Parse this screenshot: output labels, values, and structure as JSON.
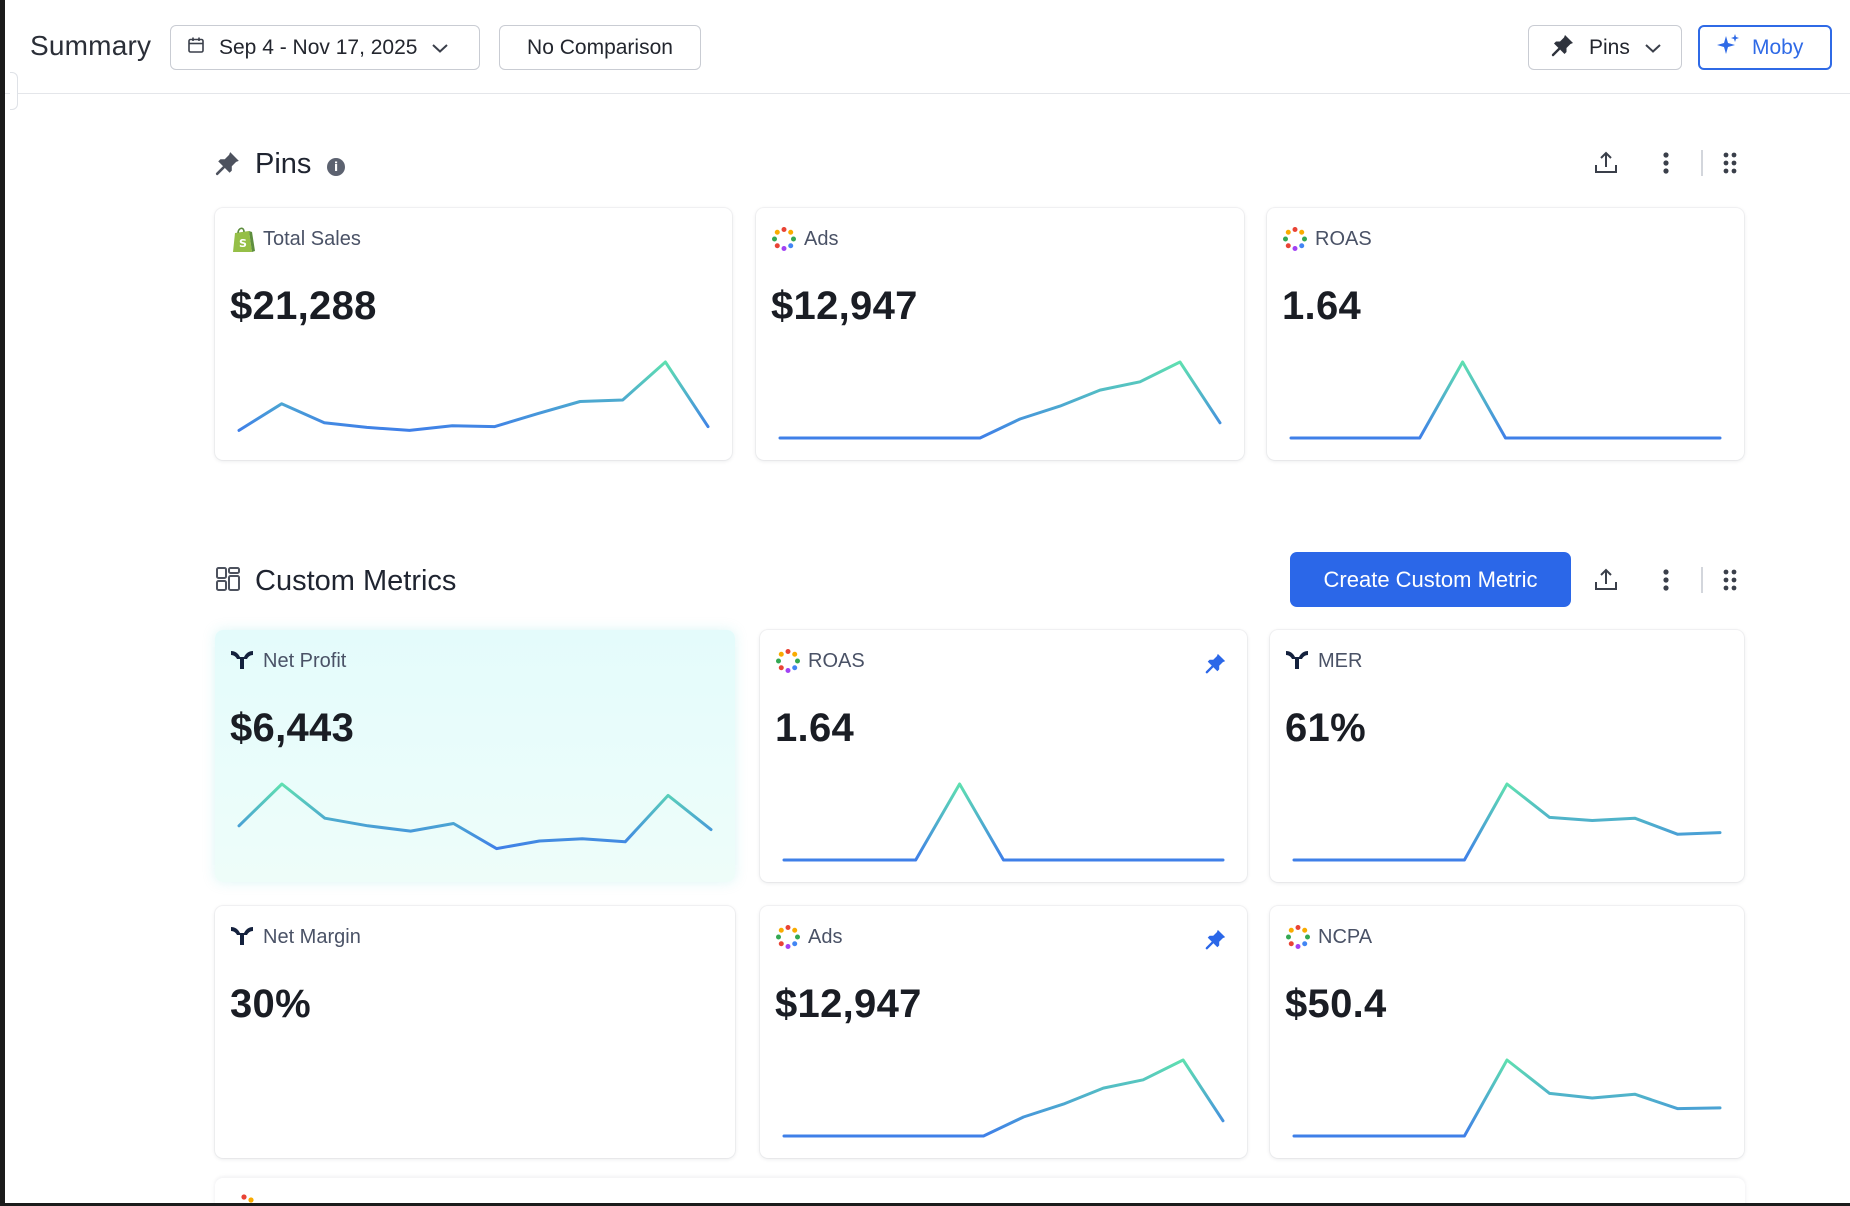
{
  "header": {
    "title": "Summary",
    "date_range": "Sep 4 - Nov 17, 2025",
    "comparison": "No Comparison",
    "pins_label": "Pins",
    "moby_label": "Moby"
  },
  "pins_section": {
    "title": "Pins",
    "info": "i",
    "cards": [
      {
        "label": "Total Sales",
        "value": "$21,288",
        "icon": "shopify-icon",
        "pinned": false,
        "trend": [
          0.1,
          0.45,
          0.2,
          0.14,
          0.1,
          0.16,
          0.15,
          0.32,
          0.48,
          0.5,
          1.0,
          0.15
        ]
      },
      {
        "label": "Ads",
        "value": "$12,947",
        "icon": "dotted-circle-icon",
        "pinned": false,
        "trend": [
          0.0,
          0.0,
          0.0,
          0.0,
          0.0,
          0.0,
          0.25,
          0.42,
          0.63,
          0.74,
          1.0,
          0.2
        ]
      },
      {
        "label": "ROAS",
        "value": "1.64",
        "icon": "dotted-circle-icon",
        "pinned": false,
        "trend": [
          0.0,
          0.0,
          0.0,
          0.0,
          1.0,
          0.0,
          0.0,
          0.0,
          0.0,
          0.0,
          0.0
        ]
      }
    ]
  },
  "custom_metrics_section": {
    "title": "Custom Metrics",
    "create_label": "Create Custom Metric",
    "cards": [
      {
        "label": "Net Profit",
        "value": "$6,443",
        "icon": "triple-whale-icon",
        "pinned": false,
        "highlighted": true,
        "trend": [
          0.45,
          1.0,
          0.55,
          0.45,
          0.38,
          0.48,
          0.15,
          0.25,
          0.28,
          0.24,
          0.85,
          0.4
        ]
      },
      {
        "label": "ROAS",
        "value": "1.64",
        "icon": "dotted-circle-icon",
        "pinned": true,
        "highlighted": false,
        "trend": [
          0.0,
          0.0,
          0.0,
          0.0,
          1.0,
          0.0,
          0.0,
          0.0,
          0.0,
          0.0,
          0.0
        ]
      },
      {
        "label": "MER",
        "value": "61%",
        "icon": "triple-whale-icon",
        "pinned": false,
        "highlighted": false,
        "trend": [
          0.0,
          0.0,
          0.0,
          0.0,
          0.0,
          1.0,
          0.56,
          0.52,
          0.55,
          0.34,
          0.36
        ]
      },
      {
        "label": "Net Margin",
        "value": "30%",
        "icon": "triple-whale-icon",
        "pinned": false,
        "highlighted": false,
        "trend": []
      },
      {
        "label": "Ads",
        "value": "$12,947",
        "icon": "dotted-circle-icon",
        "pinned": true,
        "highlighted": false,
        "trend": [
          0.0,
          0.0,
          0.0,
          0.0,
          0.0,
          0.0,
          0.25,
          0.42,
          0.63,
          0.74,
          1.0,
          0.2
        ]
      },
      {
        "label": "NCPA",
        "value": "$50.4",
        "icon": "dotted-circle-icon",
        "pinned": false,
        "highlighted": false,
        "trend": [
          0.0,
          0.0,
          0.0,
          0.0,
          0.0,
          1.0,
          0.56,
          0.5,
          0.55,
          0.36,
          0.37
        ]
      }
    ]
  },
  "colors": {
    "accent": "#2b67e8",
    "spark_start": "#3f7fe8",
    "spark_end": "#5fe0b0"
  }
}
